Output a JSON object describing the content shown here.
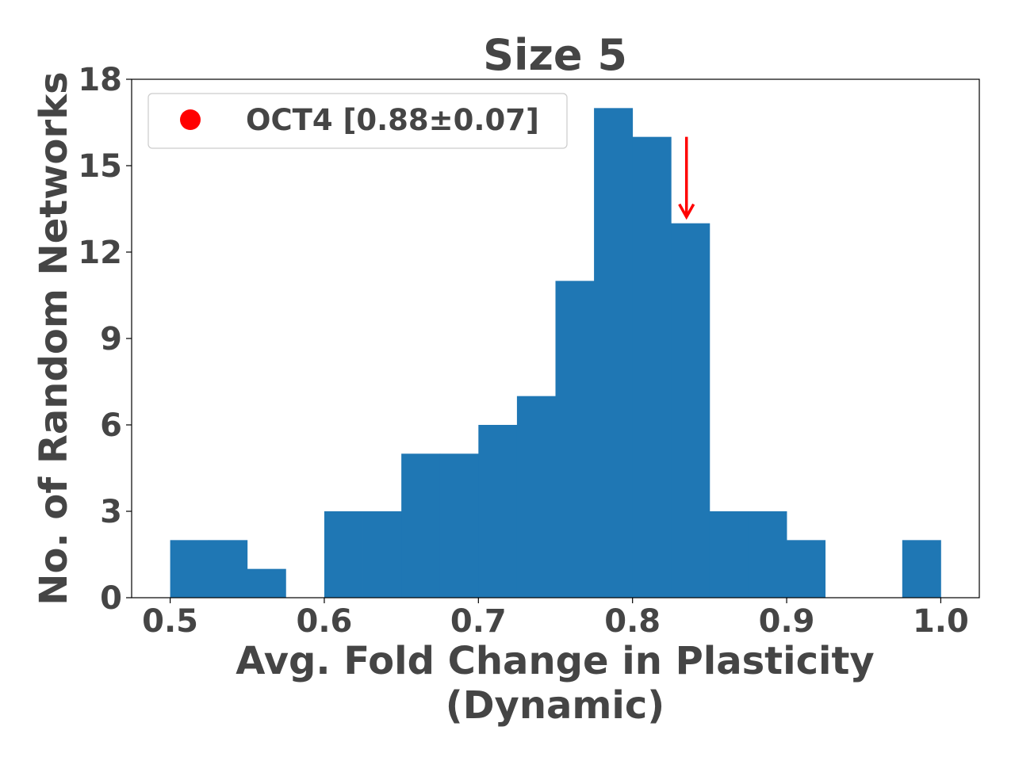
{
  "chart_data": {
    "type": "bar",
    "title": "Size 5",
    "xlabel": [
      "Avg. Fold Change in Plasticity",
      "(Dynamic)"
    ],
    "ylabel": "No. of Random Networks",
    "xlim": [
      0.475,
      1.025
    ],
    "ylim": [
      0,
      18
    ],
    "xticks": [
      "0.5",
      "0.6",
      "0.7",
      "0.8",
      "0.9",
      "1.0"
    ],
    "xtick_values": [
      0.5,
      0.6,
      0.7,
      0.8,
      0.9,
      1.0
    ],
    "yticks": [
      "0",
      "3",
      "6",
      "9",
      "12",
      "15",
      "18"
    ],
    "ytick_values": [
      0,
      3,
      6,
      9,
      12,
      15,
      18
    ],
    "bin_edges": [
      0.5,
      0.525,
      0.55,
      0.575,
      0.6,
      0.625,
      0.65,
      0.675,
      0.7,
      0.725,
      0.75,
      0.775,
      0.8,
      0.825,
      0.85,
      0.875,
      0.9,
      0.925,
      0.95,
      0.975,
      1.0
    ],
    "values": [
      2,
      2,
      1,
      0,
      3,
      3,
      5,
      5,
      6,
      7,
      11,
      17,
      16,
      13,
      3,
      3,
      2,
      0,
      0,
      2
    ],
    "bar_color": "#1f77b4",
    "marker": {
      "x": 0.835,
      "y_from": 16,
      "y_to": 13,
      "color": "#ff0000",
      "shape": "down-arrow"
    },
    "legend": {
      "position": "upper-left",
      "entries": [
        {
          "label": "OCT4 [0.88±0.07]",
          "marker": "circle",
          "color": "#ff0000"
        }
      ]
    },
    "grid": false
  }
}
